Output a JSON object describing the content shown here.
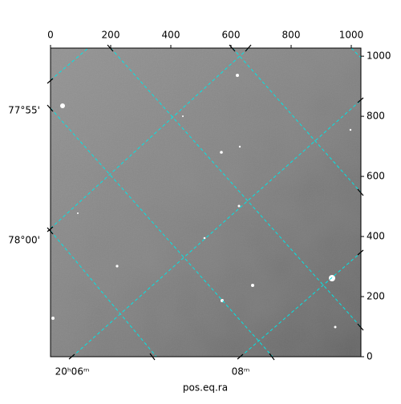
{
  "chart_data": {
    "type": "image",
    "xlabel": "pos.eq.ra",
    "xlim": [
      0,
      1032
    ],
    "ylim": [
      0,
      1027
    ],
    "xticks": [
      0,
      200,
      400,
      600,
      800,
      1000
    ],
    "yticks": [
      0,
      200,
      400,
      600,
      800,
      1000
    ],
    "ra_ticks": [
      "20ʰ06ᵐ",
      "08ᵐ"
    ],
    "dec_ticks": [
      "77°55'",
      "78°00'"
    ]
  }
}
